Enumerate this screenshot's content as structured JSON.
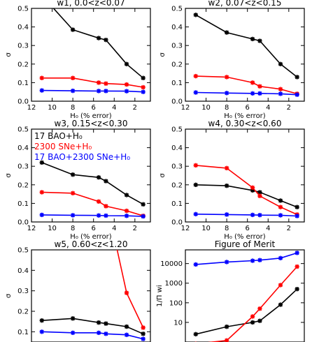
{
  "chart_data": [
    {
      "type": "line",
      "title": "w1, 0.0<z<0.07",
      "xlabel": "H₀ (% error)",
      "ylabel": "σ",
      "x_reversed": true,
      "xlim": [
        12,
        0.5
      ],
      "ylim": [
        0,
        0.5
      ],
      "xticks": [
        12,
        10,
        8,
        6,
        4,
        2
      ],
      "yticks": [
        0.0,
        0.1,
        0.2,
        0.3,
        0.4,
        0.5
      ],
      "yscale": "linear",
      "series": [
        {
          "color": "#000000",
          "x": [
            11,
            8,
            5.5,
            4.8,
            2.8,
            1.2
          ],
          "y": [
            0.57,
            0.385,
            0.34,
            0.33,
            0.2,
            0.125
          ]
        },
        {
          "color": "#ff0000",
          "x": [
            11,
            8,
            5.5,
            4.8,
            2.8,
            1.2
          ],
          "y": [
            0.125,
            0.125,
            0.1,
            0.095,
            0.09,
            0.075
          ]
        },
        {
          "color": "#0000ff",
          "x": [
            11,
            8,
            5.5,
            4.8,
            2.8,
            1.2
          ],
          "y": [
            0.058,
            0.056,
            0.055,
            0.055,
            0.054,
            0.05
          ]
        }
      ]
    },
    {
      "type": "line",
      "title": "w2, 0.07<z<0.15",
      "xlabel": "H₀ (% error)",
      "ylabel": "σ",
      "x_reversed": true,
      "xlim": [
        12,
        0.5
      ],
      "ylim": [
        0,
        0.5
      ],
      "xticks": [
        12,
        10,
        8,
        6,
        4,
        2
      ],
      "yticks": [
        0.0,
        0.1,
        0.2,
        0.3,
        0.4,
        0.5
      ],
      "yscale": "linear",
      "series": [
        {
          "color": "#000000",
          "x": [
            11,
            8,
            5.5,
            4.8,
            2.8,
            1.2
          ],
          "y": [
            0.465,
            0.37,
            0.335,
            0.325,
            0.2,
            0.13
          ]
        },
        {
          "color": "#ff0000",
          "x": [
            11,
            8,
            5.5,
            4.8,
            2.8,
            1.2
          ],
          "y": [
            0.135,
            0.13,
            0.1,
            0.08,
            0.065,
            0.04
          ]
        },
        {
          "color": "#0000ff",
          "x": [
            11,
            8,
            5.5,
            4.8,
            2.8,
            1.2
          ],
          "y": [
            0.047,
            0.044,
            0.042,
            0.042,
            0.04,
            0.035
          ]
        }
      ]
    },
    {
      "type": "line",
      "title": "w3, 0.15<z<0.30",
      "xlabel": "H₀ (% error)",
      "ylabel": "σ",
      "x_reversed": true,
      "xlim": [
        12,
        0.5
      ],
      "ylim": [
        0,
        0.5
      ],
      "xticks": [
        12,
        10,
        8,
        6,
        4,
        2
      ],
      "yticks": [
        0.0,
        0.1,
        0.2,
        0.3,
        0.4,
        0.5
      ],
      "yscale": "linear",
      "legend": {
        "placement": "top-left",
        "entries": [
          {
            "text": "17 BAO+H₀",
            "color": "#000000"
          },
          {
            "text": "2300 SNe+H₀",
            "color": "#ff0000"
          },
          {
            "text": "17 BAO+2300 SNe+H₀",
            "color": "#0000ff"
          }
        ]
      },
      "series": [
        {
          "color": "#000000",
          "x": [
            11,
            8,
            5.5,
            4.8,
            2.8,
            1.2
          ],
          "y": [
            0.32,
            0.255,
            0.24,
            0.22,
            0.145,
            0.095
          ]
        },
        {
          "color": "#ff0000",
          "x": [
            11,
            8,
            5.5,
            4.8,
            2.8,
            1.2
          ],
          "y": [
            0.16,
            0.155,
            0.11,
            0.085,
            0.06,
            0.033
          ]
        },
        {
          "color": "#0000ff",
          "x": [
            11,
            8,
            5.5,
            4.8,
            2.8,
            1.2
          ],
          "y": [
            0.038,
            0.036,
            0.035,
            0.034,
            0.033,
            0.03
          ]
        }
      ]
    },
    {
      "type": "line",
      "title": "w4, 0.30<z<0.60",
      "xlabel": "H₀ (% error)",
      "ylabel": "σ",
      "x_reversed": true,
      "xlim": [
        12,
        0.5
      ],
      "ylim": [
        0,
        0.5
      ],
      "xticks": [
        12,
        10,
        8,
        6,
        4,
        2
      ],
      "yticks": [
        0.0,
        0.1,
        0.2,
        0.3,
        0.4,
        0.5
      ],
      "yscale": "linear",
      "series": [
        {
          "color": "#000000",
          "x": [
            11,
            8,
            5.5,
            4.8,
            2.8,
            1.2
          ],
          "y": [
            0.2,
            0.195,
            0.17,
            0.16,
            0.115,
            0.08
          ]
        },
        {
          "color": "#ff0000",
          "x": [
            11,
            8,
            5.5,
            4.8,
            2.8,
            1.2
          ],
          "y": [
            0.305,
            0.29,
            0.185,
            0.14,
            0.08,
            0.04
          ]
        },
        {
          "color": "#0000ff",
          "x": [
            11,
            8,
            5.5,
            4.8,
            2.8,
            1.2
          ],
          "y": [
            0.042,
            0.04,
            0.038,
            0.037,
            0.036,
            0.032
          ]
        }
      ]
    },
    {
      "type": "line",
      "title": "w5, 0.60<z<1.20",
      "xlabel": "",
      "ylabel": "σ",
      "x_reversed": true,
      "xlim": [
        12,
        0.5
      ],
      "ylim": [
        0.05,
        0.5
      ],
      "xticks": [],
      "yticks": [
        0.1,
        0.2,
        0.3,
        0.4,
        0.5
      ],
      "yscale": "linear",
      "series": [
        {
          "color": "#000000",
          "x": [
            11,
            8,
            5.5,
            4.8,
            2.8,
            1.2
          ],
          "y": [
            0.155,
            0.165,
            0.145,
            0.14,
            0.125,
            0.09
          ]
        },
        {
          "color": "#ff0000",
          "x": [
            4.8,
            2.8,
            1.2
          ],
          "y": [
            0.75,
            0.29,
            0.12
          ]
        },
        {
          "color": "#0000ff",
          "x": [
            11,
            8,
            5.5,
            4.8,
            2.8,
            1.2
          ],
          "y": [
            0.1,
            0.095,
            0.095,
            0.09,
            0.085,
            0.065
          ]
        }
      ]
    },
    {
      "type": "line",
      "title": "Figure of Merit",
      "xlabel": "",
      "ylabel": "1/Π wi",
      "x_reversed": true,
      "xlim": [
        12,
        0.5
      ],
      "ylim": [
        1,
        50000
      ],
      "xticks": [],
      "yticks": [
        10,
        100,
        1000,
        10000
      ],
      "yscale": "log",
      "series": [
        {
          "color": "#000000",
          "x": [
            11,
            8,
            5.5,
            4.8,
            2.8,
            1.2
          ],
          "y": [
            2.5,
            6,
            10,
            12,
            80,
            500
          ]
        },
        {
          "color": "#ff0000",
          "x": [
            11,
            8,
            5.5,
            4.8,
            2.8,
            1.2
          ],
          "y": [
            0.8,
            1.2,
            20,
            50,
            800,
            7000
          ]
        },
        {
          "color": "#0000ff",
          "x": [
            11,
            8,
            5.5,
            4.8,
            2.8,
            1.2
          ],
          "y": [
            9000,
            12000,
            14000,
            15000,
            19000,
            35000
          ]
        }
      ]
    }
  ]
}
